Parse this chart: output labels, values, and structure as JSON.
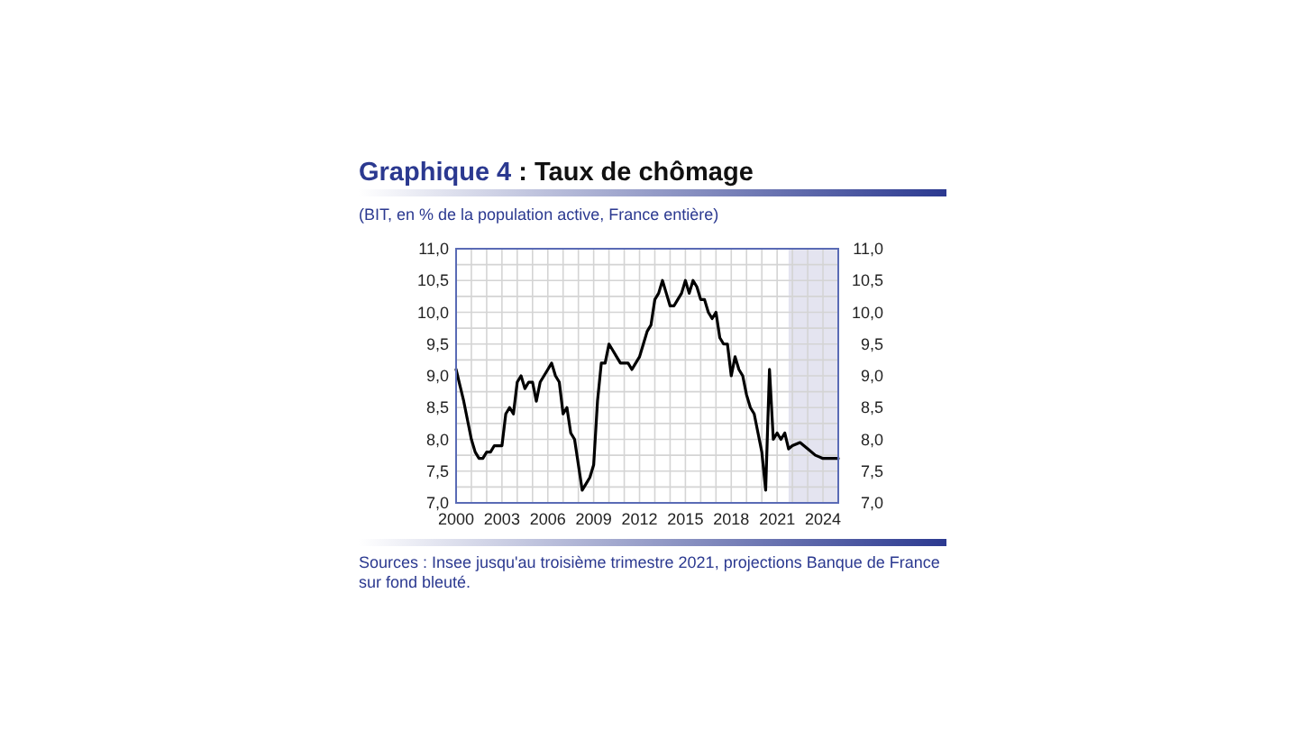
{
  "chart_data": {
    "type": "line",
    "title": "Graphique 4 : Taux de chômage",
    "subtitle": "(BIT, en % de la population active, France entière)",
    "annotations": [
      "Sources : Insee jusqu'au troisième trimestre 2021, projections Banque de France sur fond bleuté."
    ],
    "series": [
      {
        "color": "#000000",
        "x": [
          2000,
          2000.5,
          2001,
          2001.25,
          2001.5,
          2001.75,
          2002,
          2002.25,
          2002.5,
          2002.75,
          2003,
          2003.25,
          2003.5,
          2003.75,
          2004,
          2004.25,
          2004.5,
          2004.75,
          2005,
          2005.25,
          2005.5,
          2005.75,
          2006,
          2006.25,
          2006.5,
          2006.75,
          2007,
          2007.25,
          2007.5,
          2007.75,
          2008,
          2008.25,
          2008.5,
          2008.75,
          2009,
          2009.25,
          2009.5,
          2009.75,
          2010,
          2010.25,
          2010.5,
          2010.75,
          2011,
          2011.25,
          2011.5,
          2011.75,
          2012,
          2012.25,
          2012.5,
          2012.75,
          2013,
          2013.25,
          2013.5,
          2013.75,
          2014,
          2014.25,
          2014.5,
          2014.75,
          2015,
          2015.25,
          2015.5,
          2015.75,
          2016,
          2016.25,
          2016.5,
          2016.75,
          2017,
          2017.25,
          2017.5,
          2017.75,
          2018,
          2018.25,
          2018.5,
          2018.75,
          2019,
          2019.25,
          2019.5,
          2019.75,
          2020,
          2020.25,
          2020.5,
          2020.75,
          2021,
          2021.25,
          2021.5,
          2021.75,
          2022,
          2022.5,
          2023,
          2023.5,
          2024,
          2024.5,
          2025
        ],
        "values": [
          9.1,
          8.6,
          8.0,
          7.8,
          7.7,
          7.7,
          7.8,
          7.8,
          7.9,
          7.9,
          7.9,
          8.4,
          8.5,
          8.4,
          8.9,
          9.0,
          8.8,
          8.9,
          8.9,
          8.6,
          8.9,
          9.0,
          9.1,
          9.2,
          9.0,
          8.9,
          8.4,
          8.5,
          8.1,
          8.0,
          7.6,
          7.2,
          7.3,
          7.4,
          7.6,
          8.6,
          9.2,
          9.2,
          9.5,
          9.4,
          9.3,
          9.2,
          9.2,
          9.2,
          9.1,
          9.2,
          9.3,
          9.5,
          9.7,
          9.8,
          10.2,
          10.3,
          10.5,
          10.3,
          10.1,
          10.1,
          10.2,
          10.3,
          10.5,
          10.3,
          10.5,
          10.4,
          10.2,
          10.2,
          10.0,
          9.9,
          10.0,
          9.6,
          9.5,
          9.5,
          9.0,
          9.3,
          9.1,
          9.0,
          8.7,
          8.5,
          8.4,
          8.1,
          7.8,
          7.2,
          9.1,
          8.0,
          8.1,
          8.0,
          8.1,
          7.85,
          7.9,
          7.95,
          7.85,
          7.75,
          7.7,
          7.7,
          7.7
        ]
      }
    ],
    "xlim": [
      2000,
      2025
    ],
    "xticks": [
      2000,
      {
        "value": 2001,
        "label": null
      },
      {
        "value": 2002,
        "label": null
      },
      2003,
      {
        "value": 2004,
        "label": null
      },
      {
        "value": 2005,
        "label": null
      },
      2006,
      {
        "value": 2007,
        "label": null
      },
      {
        "value": 2008,
        "label": null
      },
      2009,
      {
        "value": 2010,
        "label": null
      },
      {
        "value": 2011,
        "label": null
      },
      2012,
      {
        "value": 2013,
        "label": null
      },
      {
        "value": 2014,
        "label": null
      },
      2015,
      {
        "value": 2016,
        "label": null
      },
      {
        "value": 2017,
        "label": null
      },
      2018,
      {
        "value": 2019,
        "label": null
      },
      {
        "value": 2020,
        "label": null
      },
      2021,
      {
        "value": 2022,
        "label": null
      },
      {
        "value": 2023,
        "label": null
      },
      2024
    ],
    "ylim": [
      7,
      11
    ],
    "yticks": [
      {
        "value": 7,
        "label": "7,0"
      },
      {
        "value": 7.25,
        "label": null
      },
      {
        "value": 7.5,
        "label": "7,5"
      },
      {
        "value": 7.75,
        "label": null
      },
      {
        "value": 8,
        "label": "8,0"
      },
      {
        "value": 8.25,
        "label": null
      },
      {
        "value": 8.5,
        "label": "8,5"
      },
      {
        "value": 8.75,
        "label": null
      },
      {
        "value": 9,
        "label": "9,0"
      },
      {
        "value": 9.25,
        "label": null
      },
      {
        "value": 9.5,
        "label": "9,5"
      },
      {
        "value": 9.75,
        "label": null
      },
      {
        "value": 10,
        "label": "10,0"
      },
      {
        "value": 10.25,
        "label": null
      },
      {
        "value": 10.5,
        "label": "10,5"
      },
      {
        "value": 10.75,
        "label": null
      },
      {
        "value": 11,
        "label": "11,0"
      }
    ],
    "y2lim": [
      7,
      11
    ],
    "y2ticks": [
      {
        "value": 7,
        "label": "7,0"
      },
      {
        "value": 7.5,
        "label": "7,5"
      },
      {
        "value": 8,
        "label": "8,0"
      },
      {
        "value": 8.5,
        "label": "8,5"
      },
      {
        "value": 9,
        "label": "9,0"
      },
      {
        "value": 9.5,
        "label": "9,5"
      },
      {
        "value": 10,
        "label": "10,0"
      },
      {
        "value": 10.5,
        "label": "10,5"
      },
      {
        "value": 11,
        "label": "11,0"
      }
    ],
    "bands": [
      {
        "axis": "x",
        "from": 2021.75,
        "to": 2025,
        "color": "#e4e4f0"
      }
    ],
    "grid": true,
    "line_style": "solid",
    "marker": "none"
  }
}
